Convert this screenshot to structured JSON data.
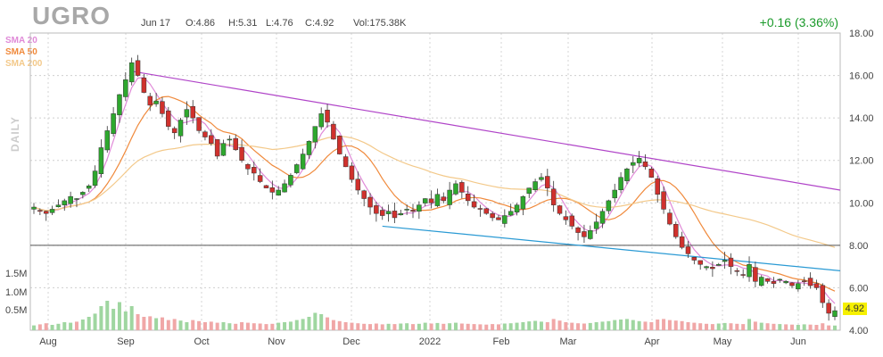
{
  "header": {
    "ticker": "UGRO",
    "date": "Jun 17",
    "open": "O:4.86",
    "high": "H:5.31",
    "low": "L:4.76",
    "close": "C:4.92",
    "volume": "Vol:175.38K",
    "change": "+0.16 (3.36%)"
  },
  "side_label": "DAILY",
  "indicators": [
    {
      "label": "SMA 20",
      "color": "#e08ad8"
    },
    {
      "label": "SMA 50",
      "color": "#f08a3c"
    },
    {
      "label": "SMA 200",
      "color": "#f3c98a"
    }
  ],
  "last_price_badge": "4.92",
  "chart_data": {
    "type": "candlestick",
    "x_labels": [
      "Aug",
      "Sep",
      "Oct",
      "Nov",
      "Dec",
      "2022",
      "Feb",
      "Mar",
      "Apr",
      "May",
      "Jun"
    ],
    "price_ticks": [
      "18.00",
      "16.00",
      "14.00",
      "12.00",
      "10.00",
      "8.00",
      "6.00",
      "4.00"
    ],
    "price_range": [
      4,
      18
    ],
    "volume_ticks": [
      "1.5M",
      "1.0M",
      "0.5M"
    ],
    "volume_range": [
      0,
      2000000
    ],
    "horizontal_line": 8.0,
    "trendlines": [
      {
        "name": "upper",
        "color": "#b044c8",
        "from": [
          "Sep 8",
          16.2
        ],
        "to": [
          "Jun 17",
          10.6
        ]
      },
      {
        "name": "lower",
        "color": "#2a9ad4",
        "from": [
          "Nov 26",
          8.9
        ],
        "to": [
          "Jun 17",
          6.8
        ]
      }
    ],
    "grid": true,
    "close_series": [
      9.8,
      9.6,
      9.5,
      9.7,
      9.9,
      10.1,
      10.3,
      10.2,
      10.5,
      10.8,
      11.5,
      12.6,
      13.4,
      14.2,
      15.1,
      15.8,
      16.6,
      16.0,
      15.2,
      14.6,
      14.8,
      14.2,
      13.6,
      13.3,
      13.9,
      14.4,
      14.0,
      13.4,
      13.1,
      12.8,
      12.2,
      12.8,
      13.0,
      12.5,
      12.0,
      11.6,
      11.4,
      11.0,
      10.7,
      10.5,
      10.6,
      10.9,
      11.3,
      11.8,
      12.3,
      12.9,
      13.6,
      14.2,
      13.8,
      13.0,
      12.3,
      11.7,
      11.1,
      10.6,
      10.2,
      9.8,
      9.5,
      9.4,
      9.6,
      9.3,
      9.5,
      9.7,
      9.6,
      9.9,
      10.2,
      10.0,
      10.4,
      10.1,
      10.6,
      10.9,
      10.5,
      10.1,
      9.8,
      9.7,
      9.5,
      9.3,
      9.2,
      9.4,
      9.6,
      9.9,
      10.3,
      10.7,
      11.0,
      11.2,
      10.7,
      9.9,
      9.5,
      9.2,
      8.9,
      8.6,
      8.4,
      8.7,
      9.1,
      9.6,
      10.1,
      10.6,
      11.2,
      11.6,
      11.9,
      12.1,
      11.7,
      11.2,
      10.4,
      9.7,
      9.0,
      8.4,
      7.9,
      7.6,
      7.3,
      7.1,
      7.0,
      6.9,
      7.1,
      7.3,
      7.0,
      6.8,
      6.6,
      7.1,
      6.3,
      6.5,
      6.3,
      6.2,
      6.4,
      6.3,
      6.1,
      6.2,
      6.3,
      6.1,
      6.0,
      5.3,
      4.8,
      4.92
    ]
  },
  "volume_series_k": [
    180,
    220,
    260,
    200,
    240,
    300,
    280,
    320,
    400,
    500,
    620,
    900,
    1100,
    800,
    1050,
    700,
    900,
    600,
    500,
    520,
    450,
    480,
    380,
    420,
    360,
    300,
    380,
    340,
    300,
    320,
    280,
    300,
    260,
    240,
    300,
    280,
    260,
    250,
    230,
    240,
    280,
    300,
    320,
    380,
    420,
    500,
    650,
    600,
    480,
    380,
    340,
    300,
    280,
    260,
    240,
    230,
    250,
    220,
    240,
    230,
    250,
    260,
    230,
    240,
    280,
    250,
    270,
    240,
    260,
    280,
    250,
    240,
    230,
    220,
    210,
    230,
    220,
    250,
    260,
    280,
    300,
    330,
    350,
    320,
    300,
    420,
    360,
    300,
    280,
    260,
    250,
    270,
    300,
    320,
    340,
    380,
    400,
    420,
    380,
    340,
    320,
    300,
    400,
    420,
    380,
    360,
    340,
    300,
    280,
    260,
    240,
    230,
    250,
    270,
    260,
    240,
    230,
    420,
    320,
    280,
    260,
    240,
    230,
    220,
    210,
    200,
    220,
    210,
    200,
    260,
    180,
    175
  ]
}
